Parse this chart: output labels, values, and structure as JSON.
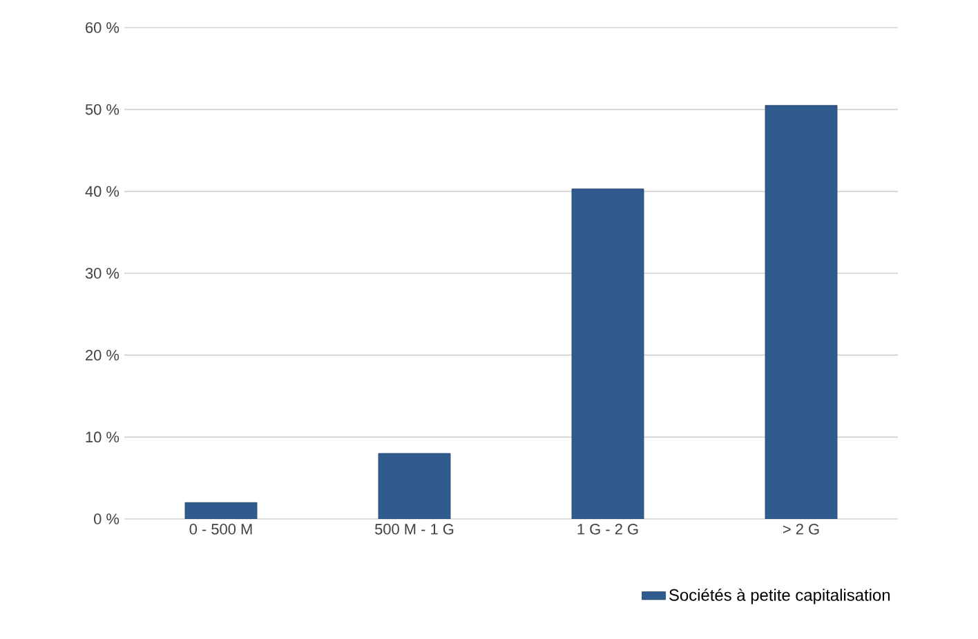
{
  "chart_data": {
    "type": "bar",
    "categories": [
      "0 - 500 M",
      "500 M - 1 G",
      "1 G - 2 G",
      "> 2 G"
    ],
    "series": [
      {
        "name": "Sociétés à petite capitalisation",
        "color": "#2f5b8f",
        "values": [
          2,
          8,
          40.3,
          50.5
        ]
      }
    ],
    "ylim": [
      0,
      60
    ],
    "yticks": [
      {
        "value": 0,
        "label": "0 %"
      },
      {
        "value": 10,
        "label": "10 %"
      },
      {
        "value": 20,
        "label": "20 %"
      },
      {
        "value": 30,
        "label": "30 %"
      },
      {
        "value": 40,
        "label": "40 %"
      },
      {
        "value": 50,
        "label": "50 %"
      },
      {
        "value": 60,
        "label": "60 %"
      }
    ],
    "grid": "y",
    "legend": "bottom right"
  }
}
